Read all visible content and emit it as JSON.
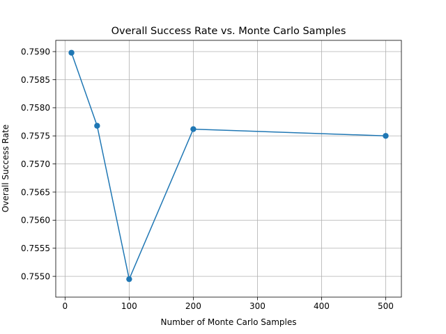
{
  "chart_data": {
    "type": "line",
    "title": "Overall Success Rate vs. Monte Carlo Samples",
    "xlabel": "Number of Monte Carlo Samples",
    "ylabel": "Overall Success Rate",
    "x": [
      10,
      50,
      100,
      200,
      500
    ],
    "series": [
      {
        "values": [
          0.75898,
          0.75768,
          0.75495,
          0.75762,
          0.7575
        ],
        "color": "#1f77b4",
        "marker": "circle"
      }
    ],
    "xlim": [
      -14.5,
      524.5
    ],
    "ylim": [
      0.75463,
      0.7592
    ],
    "xticks": [
      0,
      100,
      200,
      300,
      400,
      500
    ],
    "xtick_labels": [
      "0",
      "100",
      "200",
      "300",
      "400",
      "500"
    ],
    "yticks": [
      0.755,
      0.7555,
      0.756,
      0.7565,
      0.757,
      0.7575,
      0.758,
      0.7585,
      0.759
    ],
    "ytick_labels": [
      "0.7550",
      "0.7555",
      "0.7560",
      "0.7565",
      "0.7570",
      "0.7575",
      "0.7580",
      "0.7585",
      "0.7590"
    ],
    "grid": true,
    "legend": false
  }
}
